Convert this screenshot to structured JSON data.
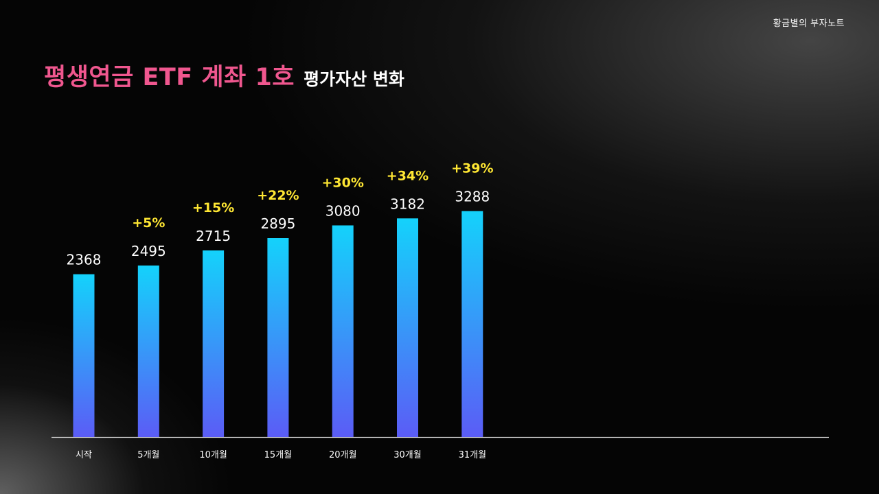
{
  "brand": {
    "name": "황금별의 부자노트"
  },
  "title": {
    "main": "평생연금 ETF 계좌 1호",
    "sub": "평가자산 변화"
  },
  "colors": {
    "title_accent": "#f0578f",
    "bar_top": "#14d2fb",
    "bar_bottom": "#5b5cf6",
    "growth_label": "#ffe733",
    "value_label": "#ffffff",
    "axis_line": "#cfcfcf"
  },
  "chart_data": {
    "type": "bar",
    "title": "",
    "xlabel": "",
    "ylabel": "",
    "categories": [
      "시작",
      "5개월",
      "10개월",
      "15개월",
      "20개월",
      "30개월",
      "31개월"
    ],
    "values": [
      2368,
      2495,
      2715,
      2895,
      3080,
      3182,
      3288
    ],
    "value_labels": [
      "2368",
      "2495",
      "2715",
      "2895",
      "3080",
      "3182",
      "3288"
    ],
    "growth_labels": [
      "",
      "+5%",
      "+15%",
      "+22%",
      "+30%",
      "+34%",
      "+39%"
    ],
    "ylim": [
      0,
      4000
    ],
    "grid": false,
    "legend": "none"
  }
}
